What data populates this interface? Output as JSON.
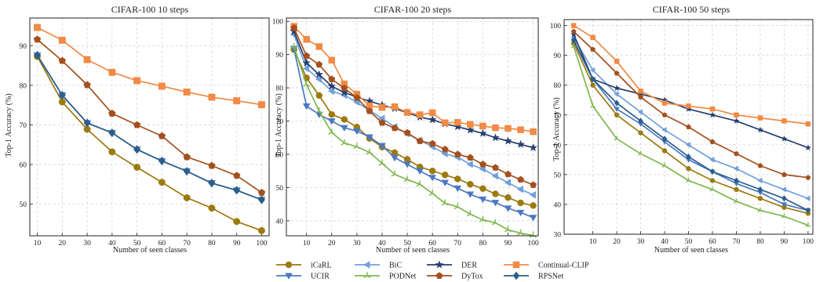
{
  "chart_data": [
    {
      "type": "line",
      "title": "CIFAR-100 10 steps",
      "xlabel": "Number of seen classes",
      "ylabel": "Top-1 Accuracy (%)",
      "xlim": [
        7,
        103
      ],
      "ylim": [
        42,
        97
      ],
      "x_ticks": [
        10,
        20,
        30,
        40,
        50,
        60,
        70,
        80,
        90,
        100
      ],
      "y_ticks": [
        50,
        60,
        70,
        80,
        90
      ],
      "grid": true,
      "series": [
        {
          "name": "iCaRL",
          "x": [
            10,
            20,
            30,
            40,
            50,
            60,
            70,
            80,
            90,
            100
          ],
          "values": [
            87.3,
            75.8,
            68.9,
            63.2,
            59.3,
            55.5,
            51.6,
            49.0,
            45.6,
            43.3
          ]
        },
        {
          "name": "UCIR",
          "x": [
            10,
            20,
            30,
            40,
            50,
            60,
            70,
            80,
            90,
            100
          ],
          "values": [
            87.6,
            77.5,
            70.5,
            68.0,
            63.8,
            60.9,
            58.3,
            55.3,
            53.5,
            51.1
          ]
        },
        {
          "name": "Continual-CLIP",
          "x": [
            10,
            20,
            30,
            40,
            50,
            60,
            70,
            80,
            90,
            100
          ],
          "values": [
            94.6,
            91.4,
            86.5,
            83.3,
            81.2,
            79.8,
            78.3,
            77.0,
            76.1,
            75.1
          ]
        },
        {
          "name": "DyTox",
          "x": [
            10,
            20,
            30,
            40,
            50,
            60,
            70,
            80,
            90,
            100
          ],
          "values": [
            91.6,
            86.2,
            80.1,
            72.9,
            70.0,
            67.2,
            61.9,
            59.7,
            57.2,
            52.9
          ]
        },
        {
          "name": "RPSNet",
          "x": [
            10,
            20,
            30,
            40,
            50,
            60,
            70,
            80,
            90,
            100
          ],
          "values": [
            87.6,
            77.5,
            70.5,
            68.0,
            63.8,
            60.9,
            58.3,
            55.3,
            53.5,
            51.1
          ]
        }
      ]
    },
    {
      "type": "line",
      "title": "CIFAR-100 20 steps",
      "xlabel": "Number of seen classes",
      "ylabel": "Top-1 Accuracy (%)",
      "xlim": [
        2,
        102
      ],
      "ylim": [
        35.5,
        101
      ],
      "x_ticks": [
        10,
        20,
        30,
        40,
        50,
        60,
        70,
        80,
        90,
        100
      ],
      "y_ticks": [
        40,
        50,
        60,
        70,
        80,
        90,
        100
      ],
      "grid": true,
      "series": [
        {
          "name": "iCaRL",
          "x": [
            5,
            10,
            15,
            20,
            25,
            30,
            35,
            40,
            45,
            50,
            55,
            60,
            65,
            70,
            75,
            80,
            85,
            90,
            95,
            100
          ],
          "values": [
            91.5,
            83.0,
            77.7,
            72.0,
            70.5,
            68.2,
            64.8,
            62.2,
            60.5,
            58.5,
            56.2,
            55.0,
            53.8,
            52.6,
            51.0,
            49.7,
            48.1,
            47.0,
            45.4,
            44.6
          ]
        },
        {
          "name": "UCIR",
          "x": [
            5,
            10,
            15,
            20,
            25,
            30,
            35,
            40,
            45,
            50,
            55,
            60,
            65,
            70,
            75,
            80,
            85,
            90,
            95,
            100
          ],
          "values": [
            91.8,
            74.5,
            72.0,
            70.0,
            68.0,
            67.0,
            65.2,
            62.6,
            59.0,
            57.0,
            55.0,
            53.0,
            51.5,
            49.8,
            48.0,
            46.5,
            45.5,
            43.8,
            42.5,
            41.0
          ]
        },
        {
          "name": "BiC",
          "x": [
            5,
            10,
            15,
            20,
            25,
            30,
            35,
            40,
            45,
            50,
            55,
            60,
            65,
            70,
            75,
            80,
            85,
            90,
            95,
            100
          ],
          "values": [
            96.0,
            85.8,
            82.6,
            79.0,
            77.8,
            75.7,
            73.2,
            70.8,
            68.3,
            66.2,
            64.2,
            62.3,
            60.2,
            59.1,
            57.0,
            55.6,
            53.5,
            51.5,
            49.5,
            47.8
          ]
        },
        {
          "name": "PODNet",
          "x": [
            5,
            10,
            15,
            20,
            25,
            30,
            35,
            40,
            45,
            50,
            55,
            60,
            65,
            70,
            75,
            80,
            85,
            90,
            95,
            100
          ],
          "values": [
            92.4,
            81.0,
            73.0,
            66.6,
            63.4,
            62.3,
            60.6,
            57.3,
            54.0,
            52.4,
            51.0,
            48.2,
            45.3,
            44.2,
            42.0,
            40.3,
            39.4,
            37.3,
            36.3,
            35.6
          ]
        },
        {
          "name": "DER",
          "x": [
            5,
            10,
            15,
            20,
            25,
            30,
            35,
            40,
            45,
            50,
            55,
            60,
            65,
            70,
            75,
            80,
            85,
            90,
            95,
            100
          ],
          "values": [
            97.0,
            87.5,
            84.0,
            80.5,
            78.6,
            77.2,
            76.0,
            74.8,
            73.8,
            72.5,
            71.2,
            70.4,
            69.2,
            68.3,
            67.3,
            66.3,
            65.0,
            64.0,
            63.0,
            62.0
          ]
        },
        {
          "name": "Continual-CLIP",
          "x": [
            5,
            10,
            15,
            20,
            25,
            30,
            35,
            40,
            45,
            50,
            55,
            60,
            65,
            70,
            75,
            80,
            85,
            90,
            95,
            100
          ],
          "values": [
            98.5,
            94.6,
            92.4,
            88.3,
            81.2,
            78.1,
            74.6,
            74.1,
            74.3,
            72.6,
            71.9,
            72.5,
            69.5,
            69.6,
            69.0,
            68.5,
            68.0,
            67.8,
            67.4,
            66.8
          ]
        },
        {
          "name": "DyTox",
          "x": [
            5,
            10,
            15,
            20,
            25,
            30,
            35,
            40,
            45,
            50,
            55,
            60,
            65,
            70,
            75,
            80,
            85,
            90,
            95,
            100
          ],
          "values": [
            98.0,
            89.6,
            87.0,
            82.6,
            79.9,
            77.0,
            73.0,
            69.5,
            67.9,
            66.5,
            64.0,
            63.2,
            61.5,
            60.0,
            59.0,
            57.0,
            56.0,
            54.0,
            52.4,
            50.8
          ]
        }
      ]
    },
    {
      "type": "line",
      "title": "CIFAR-100 50 steps",
      "xlabel": "Number of seen classes",
      "ylabel": "Top-1 Accuracy (%)",
      "xlim": [
        -2,
        102
      ],
      "ylim": [
        30,
        102
      ],
      "x_ticks": [
        10,
        20,
        30,
        40,
        50,
        60,
        70,
        80,
        90,
        100
      ],
      "y_ticks": [
        30,
        40,
        50,
        60,
        70,
        80,
        90,
        100
      ],
      "grid": true,
      "series": [
        {
          "name": "iCaRL",
          "x": [
            2,
            10,
            20,
            30,
            40,
            50,
            60,
            70,
            80,
            90,
            100
          ],
          "values": [
            94,
            80,
            70,
            64,
            58,
            52,
            48,
            45,
            42,
            39,
            37
          ]
        },
        {
          "name": "UCIR",
          "x": [
            2,
            10,
            20,
            30,
            40,
            50,
            60,
            70,
            80,
            90,
            100
          ],
          "values": [
            95,
            82,
            72,
            67,
            61,
            55,
            51,
            47,
            44,
            40,
            38
          ]
        },
        {
          "name": "BiC",
          "x": [
            2,
            10,
            20,
            30,
            40,
            50,
            60,
            70,
            80,
            90,
            100
          ],
          "values": [
            96,
            85,
            77,
            71,
            65,
            60,
            55,
            52,
            48,
            45,
            42
          ]
        },
        {
          "name": "PODNet",
          "x": [
            2,
            10,
            20,
            30,
            40,
            50,
            60,
            70,
            80,
            90,
            100
          ],
          "values": [
            93,
            73,
            62,
            57,
            53,
            48,
            45,
            41,
            38,
            36,
            33
          ]
        },
        {
          "name": "DER",
          "x": [
            2,
            10,
            20,
            30,
            40,
            50,
            60,
            70,
            80,
            90,
            100
          ],
          "values": [
            97,
            82,
            79,
            77,
            75,
            72,
            70,
            68,
            65,
            62,
            59
          ]
        },
        {
          "name": "Continual-CLIP",
          "x": [
            2,
            10,
            20,
            30,
            40,
            50,
            60,
            70,
            80,
            90,
            100
          ],
          "values": [
            100,
            96,
            88,
            78,
            74,
            73,
            72,
            70,
            69,
            68,
            67
          ]
        },
        {
          "name": "DyTox",
          "x": [
            2,
            10,
            20,
            30,
            40,
            50,
            60,
            70,
            80,
            90,
            100
          ],
          "values": [
            98,
            92,
            84,
            76,
            70,
            66,
            61,
            57,
            53,
            50,
            49
          ]
        },
        {
          "name": "RPSNet",
          "x": [
            2,
            10,
            20,
            30,
            40,
            50,
            60,
            70,
            80,
            90,
            100
          ],
          "values": [
            95,
            82,
            74,
            68,
            62,
            56,
            51,
            48,
            45,
            42,
            38
          ]
        }
      ]
    }
  ],
  "legend": {
    "position": "bottom",
    "entries": [
      {
        "name": "iCaRL",
        "color": "#9C7A0E",
        "marker": "circle"
      },
      {
        "name": "UCIR",
        "color": "#4A78C2",
        "marker": "tri-down"
      },
      {
        "name": "BiC",
        "color": "#6FA0DC",
        "marker": "tri-left"
      },
      {
        "name": "PODNet",
        "color": "#7DB74E",
        "marker": "tri-y"
      },
      {
        "name": "DER",
        "color": "#253F6E",
        "marker": "star"
      },
      {
        "name": "DyTox",
        "color": "#A4501E",
        "marker": "pentagon"
      },
      {
        "name": "Continual-CLIP",
        "color": "#F08A45",
        "marker": "square"
      },
      {
        "name": "RPSNet",
        "color": "#2B5F8A",
        "marker": "diamond"
      }
    ]
  }
}
